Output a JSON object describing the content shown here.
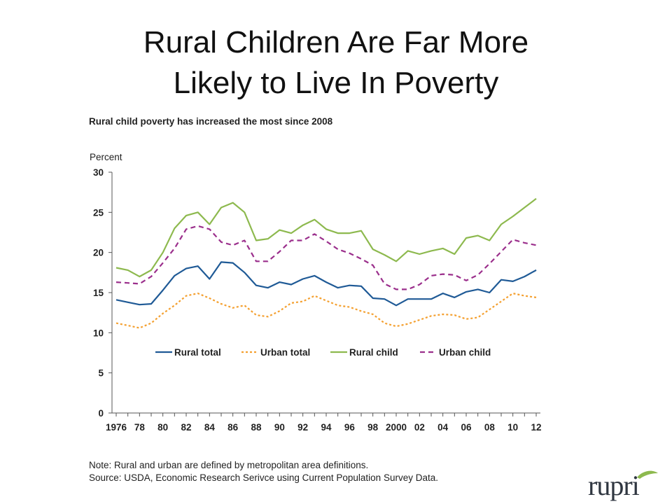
{
  "slide": {
    "title_line1": "Rural Children Are Far More",
    "title_line2": "Likely to Live In Poverty"
  },
  "chart_data": {
    "type": "line",
    "title": "Rural child poverty has increased the most since 2008",
    "ylabel": "Percent",
    "xlabel": "",
    "ylim": [
      0,
      30
    ],
    "yticks": [
      0,
      5,
      10,
      15,
      20,
      25,
      30
    ],
    "x": [
      1976,
      1977,
      1978,
      1979,
      1980,
      1981,
      1982,
      1983,
      1984,
      1985,
      1986,
      1987,
      1988,
      1989,
      1990,
      1991,
      1992,
      1993,
      1994,
      1995,
      1996,
      1997,
      1998,
      1999,
      2000,
      2001,
      2002,
      2003,
      2004,
      2005,
      2006,
      2007,
      2008,
      2009,
      2010,
      2011,
      2012
    ],
    "xtick_labels": [
      "1976",
      "78",
      "80",
      "82",
      "84",
      "86",
      "88",
      "90",
      "92",
      "94",
      "96",
      "98",
      "2000",
      "02",
      "04",
      "06",
      "08",
      "10",
      "12"
    ],
    "legend_position": "inside-bottom",
    "grid": false,
    "series": [
      {
        "name": "Rural total",
        "color": "#1f5a96",
        "dash": "solid",
        "values": [
          14.1,
          13.8,
          13.5,
          13.6,
          15.3,
          17.1,
          18.0,
          18.3,
          16.7,
          18.8,
          18.7,
          17.5,
          15.9,
          15.6,
          16.3,
          16.0,
          16.7,
          17.1,
          16.3,
          15.6,
          15.9,
          15.8,
          14.3,
          14.2,
          13.4,
          14.2,
          14.2,
          14.2,
          14.9,
          14.4,
          15.1,
          15.4,
          15.0,
          16.6,
          16.4,
          17.0,
          17.8
        ]
      },
      {
        "name": "Urban total",
        "color": "#f4a030",
        "dash": "3,3",
        "values": [
          11.2,
          10.9,
          10.6,
          11.2,
          12.4,
          13.4,
          14.6,
          14.9,
          14.3,
          13.6,
          13.1,
          13.4,
          12.2,
          12.0,
          12.7,
          13.7,
          13.9,
          14.6,
          14.0,
          13.4,
          13.2,
          12.7,
          12.3,
          11.2,
          10.8,
          11.1,
          11.6,
          12.1,
          12.3,
          12.2,
          11.7,
          11.9,
          12.9,
          13.9,
          14.9,
          14.6,
          14.4
        ]
      },
      {
        "name": "Rural child",
        "color": "#8db94e",
        "dash": "solid",
        "values": [
          18.1,
          17.8,
          17.0,
          17.8,
          20.0,
          23.0,
          24.6,
          25.0,
          23.5,
          25.6,
          26.2,
          25.0,
          21.5,
          21.7,
          22.8,
          22.4,
          23.4,
          24.1,
          22.9,
          22.4,
          22.4,
          22.7,
          20.4,
          19.7,
          18.9,
          20.2,
          19.8,
          20.2,
          20.5,
          19.8,
          21.8,
          22.1,
          21.5,
          23.5,
          24.5,
          25.6,
          26.7
        ]
      },
      {
        "name": "Urban child",
        "color": "#9b2f8c",
        "dash": "7,5",
        "values": [
          16.3,
          16.2,
          16.1,
          17.0,
          18.7,
          20.5,
          22.9,
          23.3,
          22.9,
          21.3,
          20.9,
          21.5,
          18.9,
          18.9,
          20.1,
          21.5,
          21.5,
          22.3,
          21.4,
          20.4,
          19.9,
          19.2,
          18.4,
          16.1,
          15.4,
          15.4,
          16.0,
          17.1,
          17.3,
          17.2,
          16.5,
          17.2,
          18.6,
          20.1,
          21.6,
          21.2,
          20.9
        ]
      }
    ]
  },
  "notes": {
    "note": "Note: Rural and urban are defined by metropolitan area definitions.",
    "source": "Source: USDA, Economic Research Serivce using Current Population Survey Data."
  },
  "logo": {
    "text": "rupri",
    "brand_color": "#2f3640",
    "leaf_color": "#8db94e"
  }
}
